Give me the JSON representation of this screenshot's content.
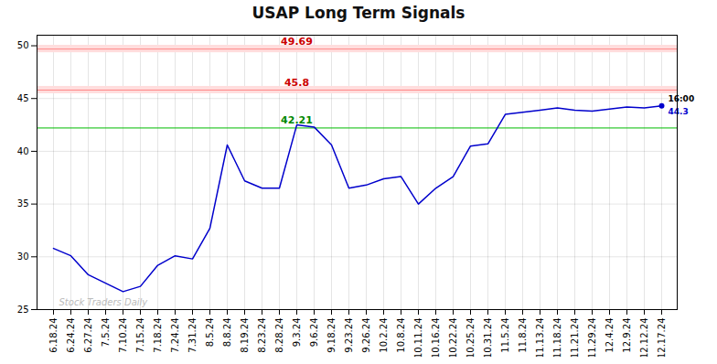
{
  "chart_data": {
    "type": "line",
    "title": "USAP Long Term Signals",
    "categories": [
      "6.18.24",
      "6.24.24",
      "6.27.24",
      "7.5.24",
      "7.10.24",
      "7.15.24",
      "7.18.24",
      "7.24.24",
      "7.31.24",
      "8.5.24",
      "8.8.24",
      "8.19.24",
      "8.23.24",
      "8.28.24",
      "9.3.24",
      "9.6.24",
      "9.18.24",
      "9.23.24",
      "9.26.24",
      "10.2.24",
      "10.8.24",
      "10.11.24",
      "10.16.24",
      "10.22.24",
      "10.25.24",
      "10.31.24",
      "11.5.24",
      "11.8.24",
      "11.13.24",
      "11.18.24",
      "11.21.24",
      "11.29.24",
      "12.4.24",
      "12.9.24",
      "12.12.24",
      "12.17.24"
    ],
    "values": [
      30.8,
      30.1,
      28.3,
      27.5,
      26.7,
      27.2,
      29.2,
      30.1,
      29.8,
      32.7,
      40.6,
      37.2,
      36.5,
      36.5,
      42.5,
      42.3,
      40.6,
      36.5,
      36.8,
      37.4,
      37.6,
      35.0,
      36.5,
      37.6,
      40.5,
      40.7,
      43.5,
      43.7,
      43.9,
      44.1,
      43.9,
      43.8,
      44.0,
      44.2,
      44.1,
      44.3
    ],
    "color": "#0000cc",
    "ylim": [
      25,
      51
    ],
    "yticks": [
      25,
      30,
      35,
      40,
      45,
      50
    ],
    "grid": true,
    "reference_lines": [
      {
        "value": 49.69,
        "label": "49.69",
        "color": "#ff8888",
        "label_color": "#cc0000",
        "band": 0.35,
        "band_color": "#ffdddd"
      },
      {
        "value": 45.8,
        "label": "45.8",
        "color": "#ff8888",
        "label_color": "#cc0000",
        "band": 0.35,
        "band_color": "#ffdddd"
      },
      {
        "value": 42.21,
        "label": "42.21",
        "color": "#00bb00",
        "label_color": "#008800"
      }
    ],
    "last_point": {
      "value": 44.3,
      "label": "16:00",
      "label_color": "#000000",
      "value_color": "#0000cc",
      "marker": "o"
    },
    "watermark": {
      "text": "Stock Traders Daily",
      "color": "#bbbbbb"
    }
  }
}
